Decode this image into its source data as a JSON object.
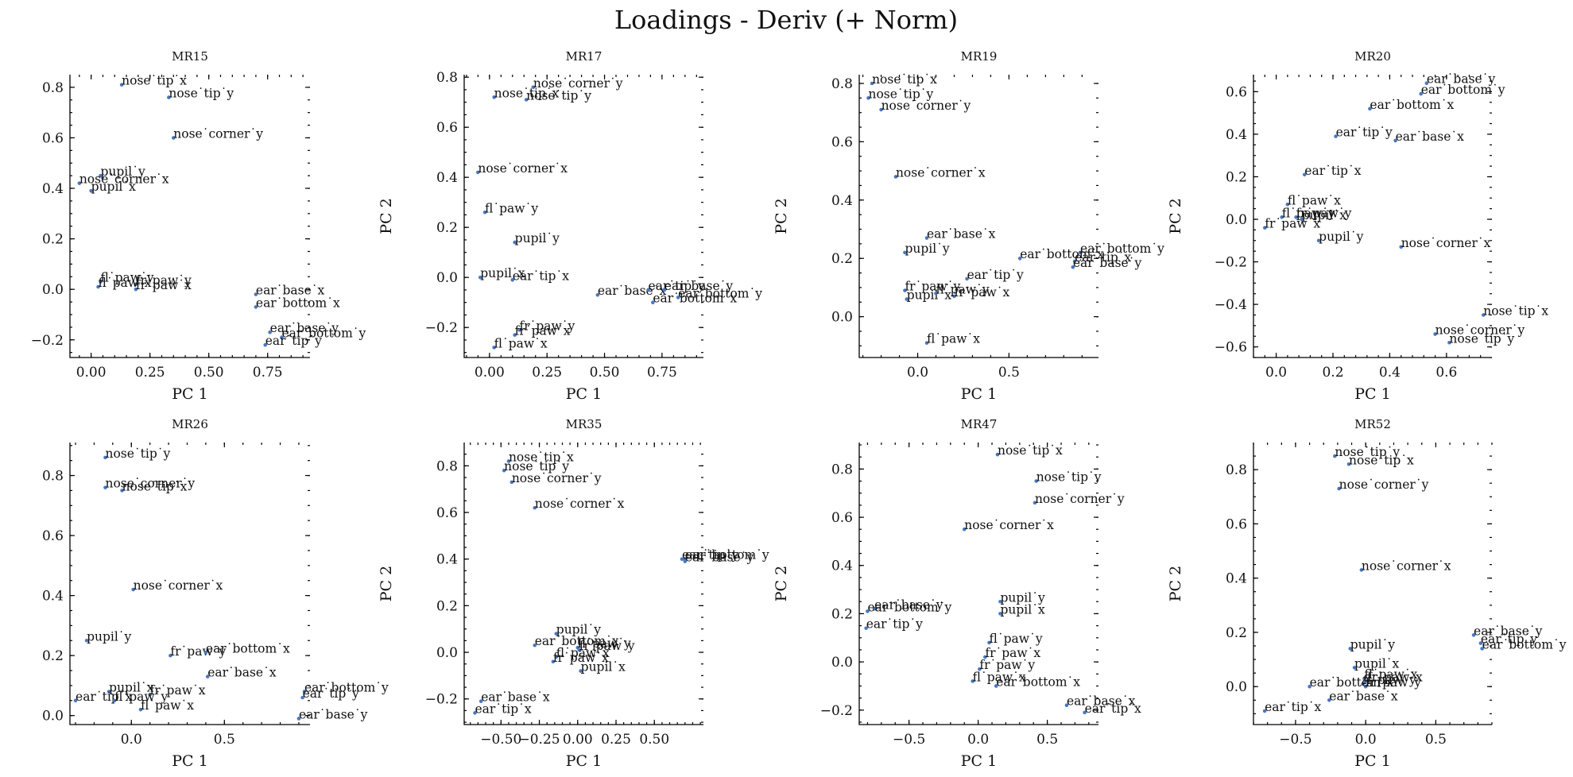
{
  "figure": {
    "title": "Loadings - Deriv (+ Norm)"
  },
  "chart_data": [
    {
      "type": "scatter",
      "title": "MR15",
      "xlabel": "PC 1",
      "ylabel": "PC 2",
      "xlim": [
        -0.09,
        0.93
      ],
      "ylim": [
        -0.27,
        0.85
      ],
      "xticks": [
        0.0,
        0.25,
        0.5,
        0.75
      ],
      "xticklabels": [
        "0.00",
        "0.25",
        "0.50",
        "0.75"
      ],
      "yticks": [
        -0.2,
        0.0,
        0.2,
        0.4,
        0.6,
        0.8
      ],
      "yticklabels": [
        "−0.2",
        "0.0",
        "0.2",
        "0.4",
        "0.6",
        "0.8"
      ],
      "points": [
        {
          "label": "nose˙tip˙x",
          "x": 0.13,
          "y": 0.81
        },
        {
          "label": "nose˙tip˙y",
          "x": 0.33,
          "y": 0.76
        },
        {
          "label": "nose˙corner˙y",
          "x": 0.35,
          "y": 0.6
        },
        {
          "label": "pupil˙y",
          "x": 0.04,
          "y": 0.45
        },
        {
          "label": "nose˙corner˙x",
          "x": -0.05,
          "y": 0.42
        },
        {
          "label": "pupil˙x",
          "x": 0.0,
          "y": 0.39
        },
        {
          "label": "fl˙paw˙y",
          "x": 0.04,
          "y": 0.03
        },
        {
          "label": "fr˙paw˙y",
          "x": 0.19,
          "y": 0.02
        },
        {
          "label": "fl˙paw˙x",
          "x": 0.03,
          "y": 0.01
        },
        {
          "label": "fr˙paw˙x",
          "x": 0.19,
          "y": 0.0
        },
        {
          "label": "ear˙base˙x",
          "x": 0.7,
          "y": -0.02
        },
        {
          "label": "ear˙bottom˙x",
          "x": 0.7,
          "y": -0.07
        },
        {
          "label": "ear˙base˙y",
          "x": 0.76,
          "y": -0.17
        },
        {
          "label": "ear˙bottom˙y",
          "x": 0.81,
          "y": -0.19
        },
        {
          "label": "ear˙tip˙y",
          "x": 0.74,
          "y": -0.22
        }
      ]
    },
    {
      "type": "scatter",
      "title": "MR17",
      "xlabel": "PC 1",
      "ylabel": "PC 2",
      "xlim": [
        -0.11,
        0.93
      ],
      "ylim": [
        -0.32,
        0.81
      ],
      "xticks": [
        0.0,
        0.25,
        0.5,
        0.75
      ],
      "xticklabels": [
        "0.00",
        "0.25",
        "0.50",
        "0.75"
      ],
      "yticks": [
        -0.2,
        0.0,
        0.2,
        0.4,
        0.6,
        0.8
      ],
      "yticklabels": [
        "−0.2",
        "0.0",
        "0.2",
        "0.4",
        "0.6",
        "0.8"
      ],
      "points": [
        {
          "label": "nose˙corner˙y",
          "x": 0.19,
          "y": 0.76
        },
        {
          "label": "nose˙tip˙x",
          "x": 0.02,
          "y": 0.72
        },
        {
          "label": "nose˙tip˙y",
          "x": 0.16,
          "y": 0.71
        },
        {
          "label": "nose˙corner˙x",
          "x": -0.05,
          "y": 0.42
        },
        {
          "label": "fl˙paw˙y",
          "x": -0.02,
          "y": 0.26
        },
        {
          "label": "pupil˙y",
          "x": 0.11,
          "y": 0.14
        },
        {
          "label": "pupil˙x",
          "x": -0.04,
          "y": 0.0
        },
        {
          "label": "ear˙tip˙x",
          "x": 0.1,
          "y": -0.01
        },
        {
          "label": "ear˙base˙x",
          "x": 0.47,
          "y": -0.07
        },
        {
          "label": "ear˙tip˙y",
          "x": 0.69,
          "y": -0.05
        },
        {
          "label": "ear˙base˙y",
          "x": 0.76,
          "y": -0.05
        },
        {
          "label": "ear˙bottom˙y",
          "x": 0.82,
          "y": -0.08
        },
        {
          "label": "ear˙bottom˙x",
          "x": 0.71,
          "y": -0.1
        },
        {
          "label": "fr˙paw˙y",
          "x": 0.13,
          "y": -0.21
        },
        {
          "label": "fr˙paw˙x",
          "x": 0.11,
          "y": -0.23
        },
        {
          "label": "fl˙paw˙x",
          "x": 0.02,
          "y": -0.28
        }
      ]
    },
    {
      "type": "scatter",
      "title": "MR19",
      "xlabel": "PC 1",
      "ylabel": "PC 2",
      "xlim": [
        -0.32,
        0.99
      ],
      "ylim": [
        -0.14,
        0.83
      ],
      "xticks": [
        0.0,
        0.5
      ],
      "xticklabels": [
        "0.0",
        "0.5"
      ],
      "yticks": [
        0.0,
        0.2,
        0.4,
        0.6,
        0.8
      ],
      "yticklabels": [
        "0.0",
        "0.2",
        "0.4",
        "0.6",
        "0.8"
      ],
      "points": [
        {
          "label": "nose˙tip˙x",
          "x": -0.25,
          "y": 0.8
        },
        {
          "label": "nose˙tip˙y",
          "x": -0.27,
          "y": 0.75
        },
        {
          "label": "nose˙corner˙y",
          "x": -0.2,
          "y": 0.71
        },
        {
          "label": "nose˙corner˙x",
          "x": -0.12,
          "y": 0.48
        },
        {
          "label": "ear˙base˙x",
          "x": 0.05,
          "y": 0.27
        },
        {
          "label": "pupil˙y",
          "x": -0.07,
          "y": 0.22
        },
        {
          "label": "ear˙bottom˙y",
          "x": 0.89,
          "y": 0.22
        },
        {
          "label": "ear˙bottom˙x",
          "x": 0.56,
          "y": 0.2
        },
        {
          "label": "ear˙tip˙x",
          "x": 0.86,
          "y": 0.19
        },
        {
          "label": "ear˙base˙y",
          "x": 0.85,
          "y": 0.17
        },
        {
          "label": "ear˙tip˙y",
          "x": 0.27,
          "y": 0.13
        },
        {
          "label": "fr˙paw˙y",
          "x": -0.07,
          "y": 0.09
        },
        {
          "label": "pupil˙x",
          "x": -0.06,
          "y": 0.06
        },
        {
          "label": "fr˙paw˙x",
          "x": 0.2,
          "y": 0.07
        },
        {
          "label": "fl˙paw˙y",
          "x": 0.1,
          "y": 0.08
        },
        {
          "label": "fl˙paw˙x",
          "x": 0.05,
          "y": -0.09
        }
      ]
    },
    {
      "type": "scatter",
      "title": "MR20",
      "xlabel": "PC 1",
      "ylabel": "PC 2",
      "xlim": [
        -0.08,
        0.76
      ],
      "ylim": [
        -0.65,
        0.68
      ],
      "xticks": [
        0.0,
        0.2,
        0.4,
        0.6
      ],
      "xticklabels": [
        "0.0",
        "0.2",
        "0.4",
        "0.6"
      ],
      "yticks": [
        -0.6,
        -0.4,
        -0.2,
        0.0,
        0.2,
        0.4,
        0.6
      ],
      "yticklabels": [
        "−0.6",
        "−0.4",
        "−0.2",
        "0.0",
        "0.2",
        "0.4",
        "0.6"
      ],
      "points": [
        {
          "label": "ear˙base˙y",
          "x": 0.53,
          "y": 0.64
        },
        {
          "label": "ear˙bottom˙y",
          "x": 0.51,
          "y": 0.59
        },
        {
          "label": "ear˙bottom˙x",
          "x": 0.33,
          "y": 0.52
        },
        {
          "label": "ear˙tip˙y",
          "x": 0.21,
          "y": 0.39
        },
        {
          "label": "ear˙base˙x",
          "x": 0.42,
          "y": 0.37
        },
        {
          "label": "ear˙tip˙x",
          "x": 0.1,
          "y": 0.21
        },
        {
          "label": "fl˙paw˙x",
          "x": 0.04,
          "y": 0.07
        },
        {
          "label": "fl˙paw˙y",
          "x": 0.02,
          "y": 0.01
        },
        {
          "label": "fr˙paw˙y",
          "x": 0.07,
          "y": 0.01
        },
        {
          "label": "pupil˙x",
          "x": 0.09,
          "y": 0.0
        },
        {
          "label": "fr˙paw˙x",
          "x": -0.04,
          "y": -0.04
        },
        {
          "label": "pupil˙y",
          "x": 0.15,
          "y": -0.1
        },
        {
          "label": "nose˙corner˙x",
          "x": 0.44,
          "y": -0.13
        },
        {
          "label": "nose˙tip˙x",
          "x": 0.73,
          "y": -0.45
        },
        {
          "label": "nose˙corner˙y",
          "x": 0.56,
          "y": -0.54
        },
        {
          "label": "nose˙tip˙y",
          "x": 0.61,
          "y": -0.58
        }
      ]
    },
    {
      "type": "scatter",
      "title": "MR26",
      "xlabel": "PC 1",
      "ylabel": "PC 2",
      "xlim": [
        -0.33,
        0.96
      ],
      "ylim": [
        -0.03,
        0.91
      ],
      "xticks": [
        0.0,
        0.5
      ],
      "xticklabels": [
        "0.0",
        "0.5"
      ],
      "yticks": [
        0.0,
        0.2,
        0.4,
        0.6,
        0.8
      ],
      "yticklabels": [
        "0.0",
        "0.2",
        "0.4",
        "0.6",
        "0.8"
      ],
      "points": [
        {
          "label": "nose˙tip˙y",
          "x": -0.14,
          "y": 0.86
        },
        {
          "label": "nose˙corner˙y",
          "x": -0.14,
          "y": 0.76
        },
        {
          "label": "nose˙tip˙x",
          "x": -0.05,
          "y": 0.75
        },
        {
          "label": "nose˙corner˙x",
          "x": 0.01,
          "y": 0.42
        },
        {
          "label": "pupil˙y",
          "x": -0.24,
          "y": 0.25
        },
        {
          "label": "fr˙paw˙y",
          "x": 0.21,
          "y": 0.2
        },
        {
          "label": "ear˙bottom˙x",
          "x": 0.4,
          "y": 0.21
        },
        {
          "label": "ear˙base˙x",
          "x": 0.41,
          "y": 0.13
        },
        {
          "label": "fr˙paw˙x",
          "x": 0.1,
          "y": 0.07
        },
        {
          "label": "pupil˙x",
          "x": -0.12,
          "y": 0.08
        },
        {
          "label": "ear˙bottom˙y",
          "x": 0.93,
          "y": 0.08
        },
        {
          "label": "ear˙tip˙y",
          "x": 0.92,
          "y": 0.06
        },
        {
          "label": "ear˙tip˙x",
          "x": -0.3,
          "y": 0.05
        },
        {
          "label": "fl˙paw˙y",
          "x": -0.09,
          "y": 0.05
        },
        {
          "label": "fl˙paw˙x",
          "x": 0.05,
          "y": 0.02
        },
        {
          "label": "ear˙base˙y",
          "x": 0.9,
          "y": -0.01
        }
      ]
    },
    {
      "type": "scatter",
      "title": "MR35",
      "xlabel": "PC 1",
      "ylabel": "PC 2",
      "xlim": [
        -0.74,
        0.82
      ],
      "ylim": [
        -0.31,
        0.9
      ],
      "xticks": [
        -0.5,
        -0.25,
        0.0,
        0.25,
        0.5
      ],
      "xticklabels": [
        "−0.50",
        "−0.25",
        "0.00",
        "0.25",
        "0.50"
      ],
      "yticks": [
        -0.2,
        0.0,
        0.2,
        0.4,
        0.6,
        0.8
      ],
      "yticklabels": [
        "−0.2",
        "0.0",
        "0.2",
        "0.4",
        "0.6",
        "0.8"
      ],
      "points": [
        {
          "label": "nose˙tip˙x",
          "x": -0.45,
          "y": 0.82
        },
        {
          "label": "nose˙tip˙y",
          "x": -0.48,
          "y": 0.78
        },
        {
          "label": "nose˙corner˙y",
          "x": -0.43,
          "y": 0.73
        },
        {
          "label": "nose˙corner˙x",
          "x": -0.28,
          "y": 0.62
        },
        {
          "label": "ear˙bottom˙y",
          "x": 0.7,
          "y": 0.4
        },
        {
          "label": "ear˙tip˙y",
          "x": 0.68,
          "y": 0.4
        },
        {
          "label": "ear˙base˙y",
          "x": 0.7,
          "y": 0.39
        },
        {
          "label": "pupil˙y",
          "x": -0.14,
          "y": 0.08
        },
        {
          "label": "ear˙bottom˙x",
          "x": -0.28,
          "y": 0.03
        },
        {
          "label": "fl˙paw˙y",
          "x": 0.0,
          "y": 0.02
        },
        {
          "label": "fr˙paw˙y",
          "x": 0.01,
          "y": 0.01
        },
        {
          "label": "fl˙paw˙x",
          "x": -0.14,
          "y": -0.02
        },
        {
          "label": "fr˙paw˙x",
          "x": -0.16,
          "y": -0.04
        },
        {
          "label": "pupil˙x",
          "x": 0.02,
          "y": -0.08
        },
        {
          "label": "ear˙base˙x",
          "x": -0.63,
          "y": -0.21
        },
        {
          "label": "ear˙tip˙x",
          "x": -0.67,
          "y": -0.26
        }
      ]
    },
    {
      "type": "scatter",
      "title": "MR47",
      "xlabel": "PC 1",
      "ylabel": "PC 2",
      "xlim": [
        -0.86,
        0.87
      ],
      "ylim": [
        -0.26,
        0.91
      ],
      "xticks": [
        -0.5,
        0.0,
        0.5
      ],
      "xticklabels": [
        "−0.5",
        "0.0",
        "0.5"
      ],
      "yticks": [
        -0.2,
        0.0,
        0.2,
        0.4,
        0.6,
        0.8
      ],
      "yticklabels": [
        "−0.2",
        "0.0",
        "0.2",
        "0.4",
        "0.6",
        "0.8"
      ],
      "points": [
        {
          "label": "nose˙tip˙x",
          "x": 0.14,
          "y": 0.86
        },
        {
          "label": "nose˙tip˙y",
          "x": 0.42,
          "y": 0.75
        },
        {
          "label": "nose˙corner˙y",
          "x": 0.41,
          "y": 0.66
        },
        {
          "label": "nose˙corner˙x",
          "x": -0.1,
          "y": 0.55
        },
        {
          "label": "pupil˙y",
          "x": 0.16,
          "y": 0.25
        },
        {
          "label": "ear˙base˙y",
          "x": -0.75,
          "y": 0.22
        },
        {
          "label": "ear˙bottom˙y",
          "x": -0.8,
          "y": 0.21
        },
        {
          "label": "pupil˙x",
          "x": 0.16,
          "y": 0.2
        },
        {
          "label": "ear˙tip˙y",
          "x": -0.81,
          "y": 0.14
        },
        {
          "label": "fl˙paw˙y",
          "x": 0.08,
          "y": 0.08
        },
        {
          "label": "fr˙paw˙x",
          "x": 0.05,
          "y": 0.02
        },
        {
          "label": "fr˙paw˙y",
          "x": 0.01,
          "y": -0.03
        },
        {
          "label": "fl˙paw˙x",
          "x": -0.04,
          "y": -0.08
        },
        {
          "label": "ear˙bottom˙x",
          "x": 0.13,
          "y": -0.1
        },
        {
          "label": "ear˙base˙x",
          "x": 0.64,
          "y": -0.18
        },
        {
          "label": "ear˙tip˙x",
          "x": 0.77,
          "y": -0.21
        }
      ]
    },
    {
      "type": "scatter",
      "title": "MR52",
      "xlabel": "PC 1",
      "ylabel": "PC 2",
      "xlim": [
        -0.8,
        0.9
      ],
      "ylim": [
        -0.14,
        0.9
      ],
      "xticks": [
        -0.5,
        0.0,
        0.5
      ],
      "xticklabels": [
        "−0.5",
        "0.0",
        "0.5"
      ],
      "yticks": [
        0.0,
        0.2,
        0.4,
        0.6,
        0.8
      ],
      "yticklabels": [
        "0.0",
        "0.2",
        "0.4",
        "0.6",
        "0.8"
      ],
      "points": [
        {
          "label": "nose˙tip˙y",
          "x": -0.22,
          "y": 0.85
        },
        {
          "label": "nose˙tip˙x",
          "x": -0.12,
          "y": 0.82
        },
        {
          "label": "nose˙corner˙y",
          "x": -0.19,
          "y": 0.73
        },
        {
          "label": "nose˙corner˙x",
          "x": -0.03,
          "y": 0.43
        },
        {
          "label": "ear˙base˙y",
          "x": 0.77,
          "y": 0.19
        },
        {
          "label": "ear˙tip˙y",
          "x": 0.82,
          "y": 0.16
        },
        {
          "label": "ear˙bottom˙y",
          "x": 0.83,
          "y": 0.14
        },
        {
          "label": "pupil˙y",
          "x": -0.11,
          "y": 0.14
        },
        {
          "label": "pupil˙x",
          "x": -0.08,
          "y": 0.07
        },
        {
          "label": "fl˙paw˙x",
          "x": -0.01,
          "y": 0.03
        },
        {
          "label": "fr˙paw˙x",
          "x": 0.01,
          "y": 0.02
        },
        {
          "label": "fl˙paw˙y",
          "x": -0.02,
          "y": 0.01
        },
        {
          "label": "fr˙paw˙y",
          "x": 0.0,
          "y": 0.0
        },
        {
          "label": "ear˙bottom˙x",
          "x": -0.4,
          "y": 0.0
        },
        {
          "label": "ear˙base˙x",
          "x": -0.26,
          "y": -0.05
        },
        {
          "label": "ear˙tip˙x",
          "x": -0.72,
          "y": -0.09
        }
      ]
    }
  ]
}
